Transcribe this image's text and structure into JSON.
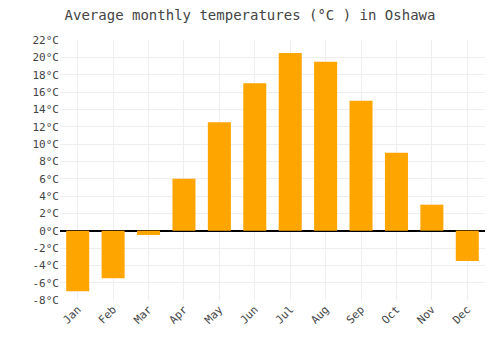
{
  "chart_data": {
    "type": "bar",
    "title": "Average monthly temperatures (°C ) in Oshawa",
    "categories": [
      "Jan",
      "Feb",
      "Mar",
      "Apr",
      "May",
      "Jun",
      "Jul",
      "Aug",
      "Sep",
      "Oct",
      "Nov",
      "Dec"
    ],
    "values": [
      -7.0,
      -5.5,
      -0.5,
      6.0,
      12.5,
      17.0,
      20.5,
      19.5,
      15.0,
      9.0,
      3.0,
      -3.5
    ],
    "color": "#FFA500",
    "ylim": [
      -8,
      22
    ],
    "yticks": [
      {
        "value": -8,
        "label": "-8°C"
      },
      {
        "value": -6,
        "label": "-6°C"
      },
      {
        "value": -4,
        "label": "-4°C"
      },
      {
        "value": -2,
        "label": "-2°C"
      },
      {
        "value": 0,
        "label": "0°C"
      },
      {
        "value": 2,
        "label": "2°C"
      },
      {
        "value": 4,
        "label": "4°C"
      },
      {
        "value": 6,
        "label": "6°C"
      },
      {
        "value": 8,
        "label": "8°C"
      },
      {
        "value": 10,
        "label": "10°C"
      },
      {
        "value": 12,
        "label": "12°C"
      },
      {
        "value": 14,
        "label": "14°C"
      },
      {
        "value": 16,
        "label": "16°C"
      },
      {
        "value": 18,
        "label": "18°C"
      },
      {
        "value": 20,
        "label": "20°C"
      },
      {
        "value": 22,
        "label": "22°C"
      }
    ],
    "grid": true
  }
}
